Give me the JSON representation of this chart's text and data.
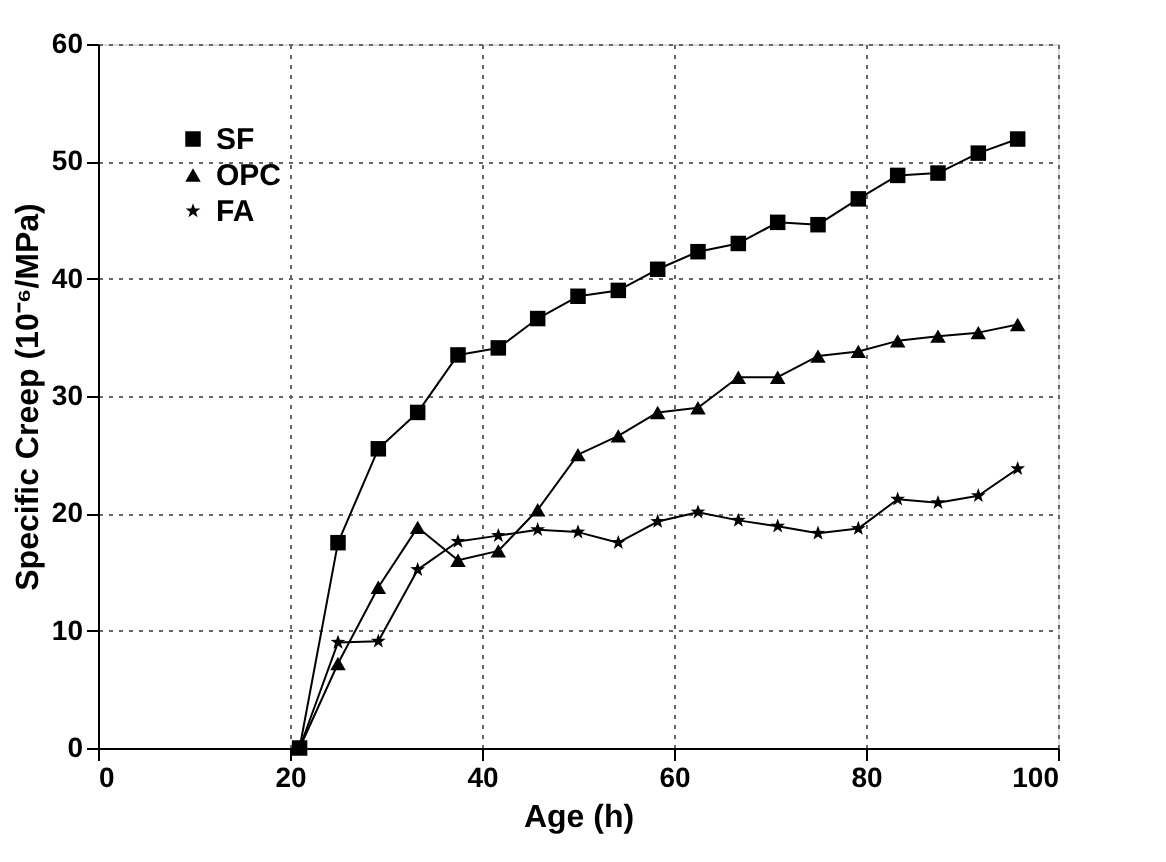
{
  "chart_data": {
    "type": "line",
    "xlabel": "Age (h)",
    "ylabel": "Specific Creep (10⁻⁶/MPa)",
    "xlim": [
      0,
      100
    ],
    "ylim": [
      0,
      60
    ],
    "xticks": [
      0,
      20,
      40,
      60,
      80,
      100
    ],
    "yticks": [
      0,
      10,
      20,
      30,
      40,
      50,
      60
    ],
    "grid": true,
    "legend": "top left",
    "line_style": "solid",
    "x": [
      21,
      25,
      29.2,
      33.3,
      37.5,
      41.7,
      45.8,
      50,
      54.2,
      58.3,
      62.5,
      66.7,
      70.8,
      75,
      79.2,
      83.3,
      87.5,
      91.7,
      95.8
    ],
    "series": [
      {
        "name": "SF",
        "color": "#000000",
        "marker": "square",
        "values": [
          0,
          17.5,
          25.5,
          28.6,
          33.5,
          34.1,
          36.6,
          38.5,
          39,
          40.8,
          42.3,
          43,
          44.8,
          44.6,
          46.8,
          48.8,
          49,
          50.7,
          51.9
        ]
      },
      {
        "name": "OPC",
        "color": "#000000",
        "marker": "triangle",
        "values": [
          0,
          7.2,
          13.7,
          18.8,
          16,
          16.8,
          20.3,
          25,
          26.6,
          28.6,
          29,
          31.6,
          31.6,
          33.4,
          33.8,
          34.7,
          35.1,
          35.4,
          36.1
        ]
      },
      {
        "name": "FA",
        "color": "#000000",
        "marker": "star",
        "values": [
          0,
          9,
          9.1,
          15.2,
          17.6,
          18.1,
          18.6,
          18.4,
          17.5,
          19.3,
          20.1,
          19.4,
          18.9,
          18.3,
          18.7,
          21.2,
          20.9,
          21.5,
          23.8
        ]
      }
    ]
  }
}
